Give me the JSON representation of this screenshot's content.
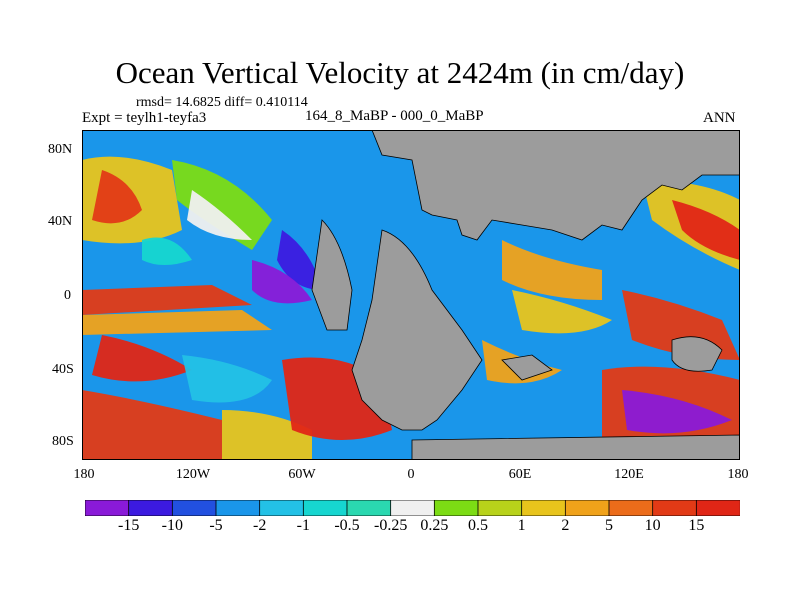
{
  "title": "Ocean Vertical Velocity at 2424m (in cm/day)",
  "stats_line": "rmsd= 14.6825 diff= 0.410114",
  "experiment_line": "Expt = teylh1-teyfa3",
  "center_subtitle": "164_8_MaBP - 000_0_MaBP",
  "season": "ANN",
  "y_ticks": [
    "80N",
    "40N",
    "0",
    "40S",
    "80S"
  ],
  "x_ticks": [
    "180",
    "120W",
    "60W",
    "0",
    "60E",
    "120E",
    "180"
  ],
  "colorbar": {
    "labels": [
      "-15",
      "-10",
      "-5",
      "-2",
      "-1",
      "-0.5",
      "-0.25",
      "0.25",
      "0.5",
      "1",
      "2",
      "5",
      "10",
      "15"
    ],
    "colors": [
      "#8a1ad8",
      "#3c1ae0",
      "#2250e0",
      "#1a96ea",
      "#23c1e6",
      "#16d6d0",
      "#2ad8b0",
      "#f0f0f0",
      "#7cdc14",
      "#b8d21a",
      "#e8c41c",
      "#f0a21a",
      "#ec6c1a",
      "#e23a16",
      "#e02616"
    ]
  },
  "colors": {
    "land": "#9c9c9c",
    "coastline": "#000000"
  }
}
